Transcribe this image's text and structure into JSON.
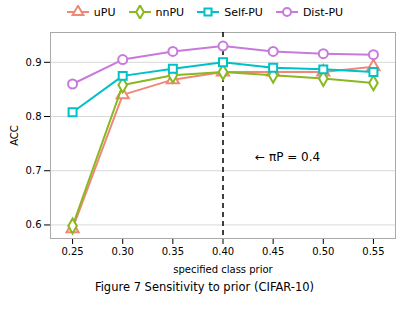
{
  "chart_data": {
    "type": "line",
    "x": [
      0.25,
      0.3,
      0.35,
      0.4,
      0.45,
      0.5,
      0.55
    ],
    "series": [
      {
        "name": "uPU",
        "color": "#f08878",
        "marker": "triangle",
        "values": [
          0.593,
          0.84,
          0.868,
          0.882,
          0.882,
          0.882,
          0.892
        ]
      },
      {
        "name": "nnPU",
        "color": "#8ab820",
        "marker": "diamond",
        "values": [
          0.598,
          0.858,
          0.876,
          0.882,
          0.876,
          0.87,
          0.862
        ]
      },
      {
        "name": "Self-PU",
        "color": "#00c0c8",
        "marker": "square",
        "values": [
          0.808,
          0.875,
          0.888,
          0.9,
          0.89,
          0.887,
          0.882
        ]
      },
      {
        "name": "Dist-PU",
        "color": "#c87adc",
        "marker": "circle",
        "values": [
          0.86,
          0.905,
          0.92,
          0.93,
          0.92,
          0.916,
          0.914
        ]
      }
    ],
    "xlabel": "specified class prior",
    "ylabel": "ACC",
    "caption": "Figure 7  Sensitivity to prior (CIFAR-10)",
    "xlim": [
      0.228,
      0.572
    ],
    "ylim": [
      0.575,
      0.955
    ],
    "xticks": [
      0.25,
      {
        "value": 0.3,
        "label": "0.30"
      },
      0.35,
      {
        "value": 0.4,
        "label": "0.40"
      },
      0.45,
      {
        "value": 0.5,
        "label": "0.50"
      },
      0.55
    ],
    "yticks": [
      0.6,
      0.7,
      0.8,
      0.9
    ],
    "grid": "y",
    "legend": "top",
    "vline": {
      "x": 0.4,
      "color": "#000000",
      "line_style": "dashed"
    },
    "annotations": [
      {
        "text": "← πP = 0.4",
        "x": 0.432,
        "y": 0.725
      }
    ]
  }
}
